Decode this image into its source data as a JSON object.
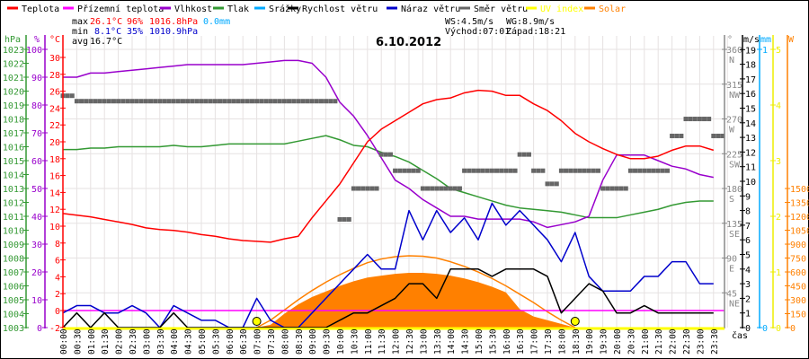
{
  "legend": [
    {
      "label": "Teplota",
      "color": "#ff0000"
    },
    {
      "label": "Přízemní teplota",
      "color": "#ff00ff"
    },
    {
      "label": "Vlhkost",
      "color": "#9900cc"
    },
    {
      "label": "Tlak",
      "color": "#339933"
    },
    {
      "label": "Srážky",
      "color": "#00aaff"
    },
    {
      "label": "Rychlost větru",
      "color": "#000000"
    },
    {
      "label": "Náraz větru",
      "color": "#0000cc"
    },
    {
      "label": "Směr větru",
      "color": "#666666"
    },
    {
      "label": "UV index",
      "color": "#ffff00"
    },
    {
      "label": "Solar",
      "color": "#ff8000"
    }
  ],
  "stats": {
    "max_label": "max",
    "max_temp": "26.1°C",
    "max_hum": "96%",
    "max_press": "1016.8hPa",
    "rain": "0.0mm",
    "min_label": "min",
    "min_temp": "8.1°C",
    "min_hum": "35%",
    "min_press": "1010.9hPa",
    "avg_label": "avg",
    "avg_temp": "16.7°C",
    "ws": "WS:4.5m/s",
    "wg": "WG:8.9m/s",
    "sunrise": "Východ:07:01",
    "sunset": "Západ:18:21"
  },
  "chart_data": {
    "type": "line",
    "title": "6.10.2012",
    "xlabel": "čas",
    "x": [
      "00:00",
      "00:30",
      "01:00",
      "01:30",
      "02:00",
      "02:30",
      "03:00",
      "03:30",
      "04:00",
      "04:30",
      "05:00",
      "05:30",
      "06:00",
      "06:30",
      "07:00",
      "07:30",
      "08:00",
      "08:30",
      "09:00",
      "09:30",
      "10:00",
      "10:30",
      "11:00",
      "11:30",
      "12:00",
      "12:30",
      "13:00",
      "13:30",
      "14:00",
      "14:30",
      "15:00",
      "15:30",
      "16:00",
      "16:30",
      "17:00",
      "17:30",
      "18:00",
      "18:30",
      "19:00",
      "19:30",
      "20:00",
      "20:30",
      "21:00",
      "21:30",
      "22:00",
      "22:30",
      "23:00",
      "23:30"
    ],
    "axes": {
      "hPa": {
        "unit": "hPa",
        "range": [
          1003,
          1023
        ],
        "ticks": [
          1003,
          1004,
          1005,
          1006,
          1007,
          1008,
          1009,
          1010,
          1011,
          1012,
          1013,
          1014,
          1015,
          1016,
          1017,
          1018,
          1019,
          1020,
          1021,
          1022,
          1023
        ]
      },
      "pct": {
        "unit": "%",
        "range": [
          0,
          100
        ],
        "ticks": [
          0,
          10,
          20,
          30,
          40,
          50,
          60,
          70,
          80,
          90,
          100
        ]
      },
      "temp": {
        "unit": "°C",
        "range": [
          -2,
          31
        ],
        "ticks": [
          -2,
          0,
          2,
          4,
          6,
          8,
          10,
          12,
          14,
          16,
          18,
          20,
          22,
          24,
          26,
          28,
          30
        ]
      },
      "deg": {
        "unit": "°",
        "range": [
          0,
          360
        ],
        "ticks": [
          45,
          90,
          135,
          180,
          225,
          270,
          315,
          360
        ],
        "compass": [
          "NE",
          "E",
          "SE",
          "S",
          "SW",
          "W",
          "NW",
          "N"
        ]
      },
      "ms": {
        "unit": "m/s",
        "range": [
          0,
          19
        ],
        "ticks": [
          0,
          1,
          2,
          3,
          4,
          5,
          6,
          7,
          8,
          9,
          10,
          11,
          12,
          13,
          14,
          15,
          16,
          17,
          18,
          19
        ]
      },
      "mm": {
        "unit": "mm",
        "range": [
          0,
          1
        ],
        "ticks": [
          0,
          1
        ]
      },
      "uv": {
        "unit": "",
        "range": [
          0,
          5
        ],
        "ticks": [
          0,
          1,
          2,
          3,
          4,
          5
        ]
      },
      "solar": {
        "unit": "W",
        "range": [
          0,
          3000
        ],
        "ticks": [
          0,
          150,
          300,
          450,
          600,
          750,
          900,
          1050,
          1200,
          1350,
          1500
        ]
      }
    },
    "series": [
      {
        "name": "Teplota",
        "axis": "temp",
        "color": "#ff0000",
        "values": [
          11.5,
          11.3,
          11.1,
          10.8,
          10.5,
          10.2,
          9.8,
          9.6,
          9.5,
          9.3,
          9.0,
          8.8,
          8.5,
          8.3,
          8.2,
          8.1,
          8.5,
          8.8,
          11,
          13,
          15,
          17.5,
          20,
          21.5,
          22.5,
          23.5,
          24.5,
          25,
          25.2,
          25.8,
          26.1,
          26,
          25.5,
          25.5,
          24.5,
          23.7,
          22.5,
          21,
          20,
          19.2,
          18.5,
          18,
          18,
          18.3,
          19,
          19.5,
          19.5,
          19
        ]
      },
      {
        "name": "Přízemní teplota",
        "axis": "temp",
        "color": "#ff00ff",
        "values": [
          0,
          0,
          0,
          0,
          0,
          0,
          0,
          0,
          0,
          0,
          0,
          0,
          0,
          0,
          0,
          0,
          0,
          0,
          0,
          0,
          0,
          0,
          0,
          0,
          0,
          0,
          0,
          0,
          0,
          0,
          0,
          0,
          0,
          0,
          0,
          0,
          0,
          0,
          0,
          0,
          0,
          0,
          0,
          0,
          0,
          0,
          0,
          0
        ]
      },
      {
        "name": "Vlhkost",
        "axis": "pct",
        "color": "#9900cc",
        "values": [
          90,
          90,
          91.5,
          91.5,
          92,
          92.5,
          93,
          93.5,
          94,
          94.5,
          94.5,
          94.5,
          94.5,
          94.5,
          95,
          95.5,
          96,
          96,
          95,
          90,
          81,
          76,
          69,
          61,
          53,
          50,
          46,
          43,
          40,
          40,
          39,
          39,
          39,
          39,
          38,
          36,
          37,
          38,
          40,
          53,
          62,
          62,
          62,
          60,
          58,
          57,
          55,
          54
        ]
      },
      {
        "name": "Tlak",
        "axis": "hPa",
        "color": "#339933",
        "values": [
          1015.8,
          1015.8,
          1015.9,
          1015.9,
          1016,
          1016,
          1016,
          1016,
          1016.1,
          1016,
          1016,
          1016.1,
          1016.2,
          1016.2,
          1016.2,
          1016.2,
          1016.2,
          1016.4,
          1016.6,
          1016.8,
          1016.5,
          1016.1,
          1016,
          1015.6,
          1015.3,
          1014.9,
          1014.3,
          1013.7,
          1013,
          1012.7,
          1012.4,
          1012.1,
          1011.8,
          1011.6,
          1011.5,
          1011.4,
          1011.3,
          1011.1,
          1010.9,
          1010.9,
          1010.9,
          1011.1,
          1011.3,
          1011.5,
          1011.8,
          1012.0,
          1012.1,
          1012.1
        ]
      },
      {
        "name": "Rychlost větru",
        "axis": "ms",
        "color": "#000000",
        "values": [
          0,
          1,
          0,
          1,
          0,
          0,
          0,
          0,
          1,
          0,
          0,
          0,
          0,
          0,
          0,
          0,
          0,
          0,
          0,
          0,
          0.5,
          1,
          1,
          1.5,
          2,
          3,
          3,
          2,
          4,
          4,
          4,
          3.5,
          4,
          4,
          4,
          3.5,
          1,
          2,
          3,
          2.5,
          1,
          1,
          1.5,
          1,
          1,
          1,
          1,
          1
        ]
      },
      {
        "name": "Náraz větru",
        "axis": "ms",
        "color": "#0000cc",
        "values": [
          1,
          1.5,
          1.5,
          1,
          1,
          1.5,
          1,
          0,
          1.5,
          1,
          0.5,
          0.5,
          0,
          0,
          2,
          0.5,
          0,
          0,
          1,
          2,
          3,
          4,
          5,
          4,
          4,
          8,
          6,
          8,
          6.5,
          7.5,
          6,
          8.5,
          7,
          8,
          7,
          6,
          4.5,
          6.5,
          3.5,
          2.5,
          2.5,
          2.5,
          3.5,
          3.5,
          4.5,
          4.5,
          3,
          3
        ]
      },
      {
        "name": "Směr větru",
        "axis": "deg",
        "color": "#666666",
        "values": [
          300,
          293,
          293,
          293,
          293,
          293,
          293,
          293,
          293,
          293,
          293,
          293,
          293,
          293,
          293,
          293,
          293,
          293,
          293,
          293,
          140,
          180,
          180,
          224,
          203,
          203,
          180,
          180,
          180,
          203,
          203,
          203,
          203,
          224,
          203,
          186,
          203,
          203,
          203,
          180,
          180,
          203,
          203,
          203,
          248,
          270,
          270,
          248
        ]
      },
      {
        "name": "Solar",
        "axis": "solar",
        "color": "#ff8000",
        "type": "area",
        "values": [
          0,
          0,
          0,
          0,
          0,
          0,
          0,
          0,
          0,
          0,
          0,
          0,
          0,
          0,
          0,
          30,
          150,
          250,
          330,
          390,
          450,
          500,
          540,
          560,
          580,
          590,
          590,
          580,
          560,
          530,
          490,
          440,
          380,
          200,
          120,
          80,
          40,
          0,
          0,
          0,
          0,
          0,
          0,
          0,
          0,
          0,
          0,
          0
        ]
      },
      {
        "name": "Solar max",
        "axis": "solar",
        "color": "#ff8000",
        "values": [
          0,
          0,
          0,
          0,
          0,
          0,
          0,
          0,
          0,
          0,
          0,
          0,
          0,
          0,
          0,
          80,
          190,
          300,
          400,
          490,
          570,
          640,
          700,
          740,
          765,
          775,
          770,
          750,
          710,
          660,
          600,
          530,
          450,
          360,
          270,
          170,
          80,
          0,
          0,
          0,
          0,
          0,
          0,
          0,
          0,
          0,
          0,
          0
        ]
      },
      {
        "name": "UV index",
        "axis": "uv",
        "color": "#ffff00",
        "values": [
          0,
          0,
          0,
          0,
          0,
          0,
          0,
          0,
          0,
          0,
          0,
          0,
          0,
          0,
          0,
          0,
          0,
          0,
          0,
          0,
          0,
          0,
          0,
          0,
          0,
          0,
          0,
          0,
          0,
          0,
          0,
          0,
          0,
          0,
          0,
          0,
          0,
          0,
          0,
          0,
          0,
          0,
          0,
          0,
          0,
          0,
          0,
          0
        ]
      },
      {
        "name": "Srážky",
        "axis": "mm",
        "color": "#00aaff",
        "values": [
          0,
          0,
          0,
          0,
          0,
          0,
          0,
          0,
          0,
          0,
          0,
          0,
          0,
          0,
          0,
          0,
          0,
          0,
          0,
          0,
          0,
          0,
          0,
          0,
          0,
          0,
          0,
          0,
          0,
          0,
          0,
          0,
          0,
          0,
          0,
          0,
          0,
          0,
          0,
          0,
          0,
          0,
          0,
          0,
          0,
          0,
          0,
          0
        ]
      }
    ],
    "sun_markers": [
      "07:00",
      "18:30"
    ]
  }
}
